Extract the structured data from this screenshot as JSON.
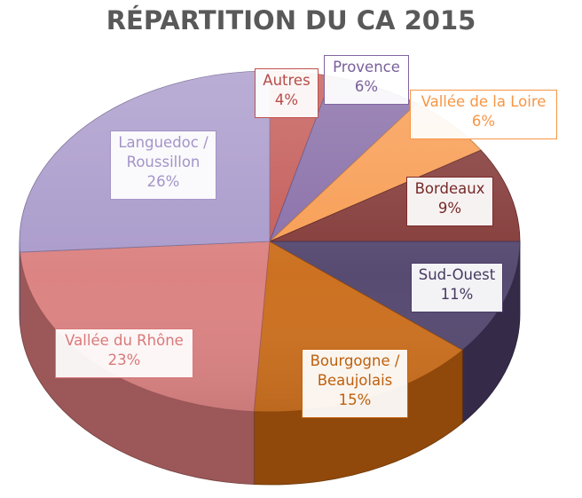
{
  "chart_data": {
    "type": "pie",
    "title": "RÉPARTITION DU CA 2015",
    "unit": "%",
    "slices": [
      {
        "name": "Autres",
        "value": 4,
        "label_lines": [
          "Autres"
        ],
        "value_label": "4%",
        "color": "#c0504d"
      },
      {
        "name": "Provence",
        "value": 6,
        "label_lines": [
          "Provence"
        ],
        "value_label": "6%",
        "color": "#8064a2"
      },
      {
        "name": "Vallée de la Loire",
        "value": 6,
        "label_lines": [
          "Vallée de la Loire"
        ],
        "value_label": "6%",
        "color": "#f79646"
      },
      {
        "name": "Bordeaux",
        "value": 9,
        "label_lines": [
          "Bordeaux"
        ],
        "value_label": "9%",
        "color": "#7b2c2a"
      },
      {
        "name": "Sud-Ouest",
        "value": 11,
        "label_lines": [
          "Sud-Ouest"
        ],
        "value_label": "11%",
        "color": "#4a3c66"
      },
      {
        "name": "Bourgogne / Beaujolais",
        "value": 15,
        "label_lines": [
          "Bourgogne /",
          "Beaujolais"
        ],
        "value_label": "15%",
        "color": "#c8650e"
      },
      {
        "name": "Vallée du Rhône",
        "value": 23,
        "label_lines": [
          "Vallée du Rhône"
        ],
        "value_label": "23%",
        "color": "#d9797a"
      },
      {
        "name": "Languedoc / Roussillon",
        "value": 26,
        "label_lines": [
          "Languedoc /",
          "Roussillon"
        ],
        "value_label": "26%",
        "color": "#a494c8"
      }
    ]
  }
}
